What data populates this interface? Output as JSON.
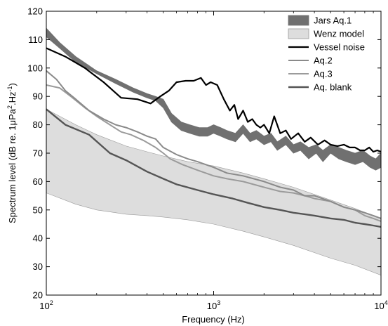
{
  "chart_data": {
    "type": "line",
    "xscale": "log",
    "xlim": [
      100,
      10000
    ],
    "ylim": [
      20,
      120
    ],
    "xlabel": "Frequency (Hz)",
    "ylabel": "Spectrum level (dB re. 1μPa",
    "ylabel_sup1": "2",
    "ylabel_mid": ".Hz",
    "ylabel_sup2": "-1",
    "ylabel_end": ")",
    "xticks": [
      {
        "value": 100,
        "base": "10",
        "exp": "2"
      },
      {
        "value": 1000,
        "base": "10",
        "exp": "3"
      },
      {
        "value": 10000,
        "base": "10",
        "exp": "4"
      }
    ],
    "yticks": [
      20,
      30,
      40,
      50,
      60,
      70,
      80,
      90,
      100,
      110,
      120
    ],
    "legend_position": "top-right",
    "series": [
      {
        "name": "Jars Aq.1",
        "kind": "band",
        "color": "#707070",
        "x": [
          100,
          120,
          150,
          200,
          260,
          330,
          400,
          450,
          500,
          560,
          640,
          720,
          820,
          920,
          1000,
          1100,
          1200,
          1350,
          1500,
          1650,
          1800,
          2000,
          2200,
          2400,
          2700,
          3000,
          3300,
          3700,
          4100,
          4500,
          5000,
          5600,
          6200,
          7000,
          7800,
          8600,
          9300,
          10000
        ],
        "upper": [
          114,
          109,
          104,
          99,
          96,
          93,
          91,
          90,
          89,
          84,
          81,
          80,
          79,
          79,
          80,
          79,
          78,
          77,
          80,
          77,
          78,
          76,
          77,
          74,
          76,
          73,
          74,
          72,
          73,
          71,
          73,
          72,
          71,
          70,
          71,
          69,
          68,
          70
        ],
        "lower": [
          111,
          107,
          102,
          98,
          94.5,
          91.5,
          89.5,
          88.5,
          86,
          81,
          78,
          77,
          76,
          76,
          77,
          76,
          75,
          74,
          77,
          74,
          75,
          73,
          74,
          71,
          73,
          70,
          71,
          68,
          70,
          67,
          70,
          68,
          67,
          66,
          67,
          65,
          64,
          65
        ]
      },
      {
        "name": "Wenz model",
        "kind": "band",
        "color": "#dddddd",
        "x": [
          100,
          150,
          200,
          300,
          400,
          500,
          700,
          1000,
          1500,
          2000,
          3000,
          5000,
          7000,
          10000
        ],
        "upper": [
          85.5,
          80,
          76.5,
          72.5,
          70.5,
          69,
          67,
          65.5,
          63,
          61,
          58,
          53.5,
          50.5,
          47
        ],
        "lower": [
          56,
          52,
          50,
          48.5,
          48,
          47.5,
          46.5,
          45,
          42.5,
          40.5,
          37.5,
          33,
          30.5,
          27
        ]
      },
      {
        "name": "Vessel noise",
        "kind": "line",
        "color": "#000000",
        "width": 2.2,
        "x": [
          100,
          130,
          170,
          220,
          280,
          350,
          420,
          480,
          540,
          600,
          680,
          760,
          840,
          900,
          960,
          1050,
          1150,
          1250,
          1330,
          1400,
          1500,
          1600,
          1700,
          1800,
          1900,
          2000,
          2150,
          2300,
          2500,
          2700,
          2900,
          3200,
          3500,
          3800,
          4200,
          4600,
          5000,
          5500,
          6000,
          6500,
          7000,
          7500,
          8000,
          8500,
          9000,
          9500,
          10000
        ],
        "values": [
          107,
          104,
          100,
          95,
          89.5,
          89,
          87.5,
          90,
          92,
          95,
          95.5,
          95.5,
          96.5,
          94,
          95,
          94,
          89,
          85,
          87,
          82,
          85,
          81,
          82,
          80,
          79,
          80,
          77,
          83,
          77,
          78,
          75,
          77,
          74,
          75.5,
          73,
          74.5,
          73,
          72.5,
          73,
          72,
          72,
          71,
          71,
          72,
          70.5,
          71,
          70.5
        ]
      },
      {
        "name": "Aq.2",
        "kind": "line",
        "color": "#8a8a8a",
        "width": 2,
        "x": [
          100,
          115,
          130,
          150,
          180,
          220,
          260,
          300,
          350,
          400,
          450,
          500,
          600,
          700,
          800,
          1000,
          1200,
          1500,
          2000,
          2500,
          3000,
          3500,
          4000,
          5000,
          6000,
          7000,
          8000,
          9000,
          10000
        ],
        "values": [
          99,
          96,
          92,
          89,
          85,
          82,
          80,
          79,
          77.5,
          76,
          75,
          72,
          69.5,
          68,
          67,
          65,
          63,
          62,
          60,
          58,
          57,
          55,
          55,
          53,
          51,
          50,
          49,
          48,
          47
        ]
      },
      {
        "name": "Aq.3",
        "kind": "line",
        "color": "#9b9b9b",
        "width": 2,
        "x": [
          100,
          120,
          140,
          170,
          200,
          240,
          280,
          320,
          380,
          450,
          500,
          550,
          650,
          800,
          1000,
          1200,
          1500,
          2000,
          2500,
          3000,
          3500,
          4000,
          5000,
          6000,
          7000,
          8000,
          9000,
          10000
        ],
        "values": [
          94,
          93,
          90,
          86,
          83,
          80,
          77.5,
          76.5,
          74.5,
          72,
          70,
          68,
          66,
          64,
          62,
          61,
          60,
          58,
          56.5,
          56,
          55,
          54,
          53,
          51,
          50,
          48,
          47,
          46
        ]
      },
      {
        "name": "Aq. blank",
        "kind": "line",
        "color": "#555555",
        "width": 2.4,
        "x": [
          100,
          130,
          180,
          240,
          300,
          400,
          500,
          600,
          800,
          1000,
          1300,
          1600,
          2000,
          2500,
          3000,
          3500,
          4000,
          5000,
          6000,
          7000,
          8000,
          9000,
          10000
        ],
        "values": [
          85.5,
          80,
          76.5,
          70,
          67.5,
          63.5,
          61,
          59,
          57,
          55.5,
          54,
          52.5,
          51,
          50,
          49,
          48.5,
          48,
          47,
          46.5,
          45.5,
          45,
          44.5,
          44
        ]
      }
    ]
  }
}
